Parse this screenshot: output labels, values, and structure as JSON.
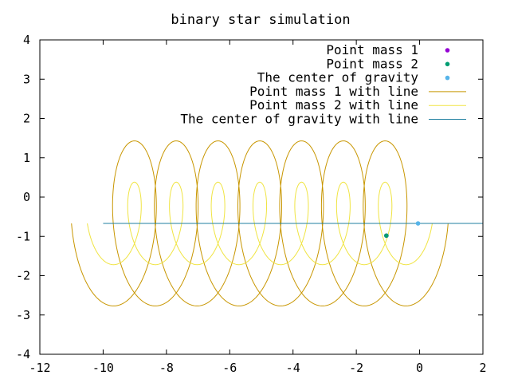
{
  "chart_data": {
    "type": "line",
    "title": "binary star simulation",
    "xlabel": "",
    "ylabel": "",
    "xlim": [
      -12,
      2
    ],
    "ylim": [
      -4,
      4
    ],
    "xticks": [
      -12,
      -10,
      -8,
      -6,
      -4,
      -2,
      0,
      2
    ],
    "yticks": [
      -4,
      -3,
      -2,
      -1,
      0,
      1,
      2,
      3,
      4
    ],
    "grid": false,
    "legend_position": "top-right",
    "series": [
      {
        "name": "Point mass 1",
        "style": "points",
        "color": "#9400d3",
        "points": [
          [
            -1.05,
            -0.98
          ]
        ]
      },
      {
        "name": "Point mass 2",
        "style": "points",
        "color": "#009e73",
        "points": [
          [
            -1.05,
            -0.98
          ]
        ]
      },
      {
        "name": "The center of gravity",
        "style": "points",
        "color": "#56b4e9",
        "points": [
          [
            -0.05,
            -0.67
          ]
        ]
      },
      {
        "name": "Point mass 1 with line",
        "style": "line",
        "color": "#c89600",
        "trajectory": {
          "type": "epicycle",
          "center_start_x": -10.0,
          "center_end_x": -0.1,
          "center_y": -0.67,
          "semi_axis_x": 1.0,
          "semi_axis_y": 2.1,
          "loops": 7.5,
          "start_point": [
            -10.7,
            -0.67
          ],
          "end_point": [
            2.0,
            -0.75
          ]
        }
      },
      {
        "name": "Point mass 2 with line",
        "style": "line",
        "color": "#f0e442",
        "trajectory": {
          "type": "epicycle",
          "center_start_x": -10.0,
          "center_end_x": -0.1,
          "center_y": -0.67,
          "semi_axis_x": 0.5,
          "semi_axis_y": 1.05,
          "loops": 7.5,
          "start_point": [
            -10.6,
            -0.82
          ],
          "end_point": [
            -1.0,
            -0.9
          ]
        }
      },
      {
        "name": "The center of gravity with line",
        "style": "line",
        "color": "#1f7fa0",
        "points": [
          [
            -10.0,
            -0.67
          ],
          [
            2.0,
            -0.67
          ]
        ]
      }
    ]
  }
}
